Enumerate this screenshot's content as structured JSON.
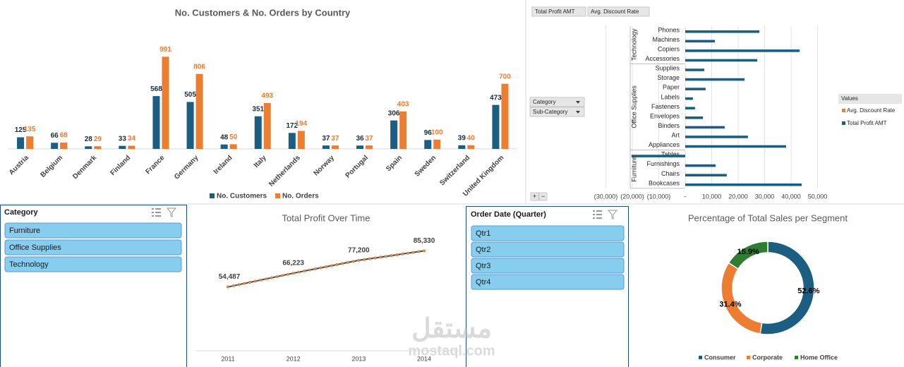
{
  "chart_data": [
    {
      "type": "bar",
      "title": "No. Customers & No. Orders by Country",
      "categories": [
        "Austria",
        "Belgium",
        "Denmark",
        "Finland",
        "France",
        "Germany",
        "Ireland",
        "Italy",
        "Netherlands",
        "Norway",
        "Portugal",
        "Spain",
        "Sweden",
        "Switzerland",
        "United Kingdom"
      ],
      "series": [
        {
          "name": "No. Customers",
          "color": "#1b5e82",
          "label_color": "#1a2a3a",
          "values": [
            125,
            66,
            28,
            33,
            568,
            505,
            48,
            351,
            172,
            37,
            36,
            306,
            96,
            39,
            473
          ]
        },
        {
          "name": "No. Orders",
          "color": "#ed7d31",
          "label_color": "#ed7d31",
          "values": [
            135,
            68,
            29,
            34,
            991,
            806,
            50,
            493,
            194,
            37,
            37,
            403,
            100,
            40,
            700
          ]
        }
      ],
      "ylim": [
        0,
        1100
      ],
      "legend": "bottom"
    },
    {
      "type": "hbar",
      "value_buttons": [
        "Total Profit AMT",
        "Avg. Discount Rate"
      ],
      "axis_buttons": [
        "Category",
        "Sub-Category"
      ],
      "expand_buttons": [
        "+",
        "−"
      ],
      "groups": [
        {
          "name": "Technology",
          "categories": [
            "Phones",
            "Machines",
            "Copiers",
            "Accessories"
          ]
        },
        {
          "name": "Office Supplies",
          "categories": [
            "Supplies",
            "Storage",
            "Paper",
            "Labels",
            "Fasteners",
            "Envelopes",
            "Binders",
            "Art",
            "Appliances"
          ]
        },
        {
          "name": "Furniture",
          "categories": [
            "Tables",
            "Furnishings",
            "Chairs",
            "Bookcases"
          ]
        }
      ],
      "legend_title": "Values",
      "series": [
        {
          "name": "Avg. Discount Rate",
          "color": "#ed7d31",
          "values": [
            0.1,
            0.1,
            0.1,
            0.1,
            0.1,
            0.1,
            0.1,
            0.1,
            0.1,
            0.1,
            0.1,
            0.1,
            0.1,
            0.1,
            0.1,
            0.1,
            0.1
          ]
        },
        {
          "name": "Total Profit AMT",
          "color": "#1b5e82",
          "values": [
            28000,
            11200,
            43200,
            27200,
            7200,
            22400,
            7700,
            2900,
            3700,
            6700,
            14900,
            23700,
            38100,
            -20300,
            11500,
            15700,
            44000
          ]
        }
      ],
      "xlim": [
        -30000,
        50000
      ],
      "xticks": [
        {
          "value": -30000,
          "label": "(30,000)"
        },
        {
          "value": -20000,
          "label": "(20,000)"
        },
        {
          "value": -10000,
          "label": "(10,000)"
        },
        {
          "value": 0,
          "label": "-"
        },
        {
          "value": 10000,
          "label": "10,000"
        },
        {
          "value": 20000,
          "label": "20,000"
        },
        {
          "value": 30000,
          "label": "30,000"
        },
        {
          "value": 40000,
          "label": "40,000"
        },
        {
          "value": 50000,
          "label": "50,000"
        }
      ],
      "grid": true,
      "legend": "right"
    },
    {
      "type": "line",
      "title": "Total Profit Over Time",
      "categories": [
        "2011",
        null,
        null,
        null,
        null,
        null,
        null,
        null,
        null,
        null,
        null,
        null,
        "2012",
        null,
        null,
        null,
        null,
        null,
        null,
        null,
        null,
        null,
        null,
        null,
        "2013",
        null,
        null,
        null,
        null,
        null,
        null,
        null,
        null,
        null,
        null,
        null,
        "2014"
      ],
      "values": [
        54487,
        55465,
        56443,
        57421,
        58399,
        59377,
        60355,
        61333,
        62311,
        63289,
        64267,
        65245,
        66223,
        67138,
        68053,
        68967,
        69882,
        70797,
        71712,
        72626,
        73541,
        74456,
        75371,
        76285,
        77200,
        77878,
        78555,
        79233,
        79910,
        80588,
        81265,
        81943,
        82620,
        83298,
        83975,
        84653,
        85330
      ],
      "value_labels": [
        "54,487",
        null,
        null,
        null,
        null,
        null,
        null,
        null,
        null,
        null,
        null,
        null,
        "66,223",
        null,
        null,
        null,
        null,
        null,
        null,
        null,
        null,
        null,
        null,
        null,
        "77,200",
        null,
        null,
        null,
        null,
        null,
        null,
        null,
        null,
        null,
        null,
        null,
        "85,330"
      ],
      "color": "#1f4e79",
      "marker_color": "#ed7d31",
      "ylim": [
        0,
        100000
      ]
    },
    {
      "type": "donut",
      "title": "Percentage of Total Sales per Segment",
      "categories": [
        "Consumer",
        "Corporate",
        "Home Office"
      ],
      "values": [
        52.6,
        31.4,
        15.9
      ],
      "value_labels": [
        "52.6%",
        "31.4%",
        "15.9%"
      ],
      "colors": [
        "#1b5e82",
        "#ed7d31",
        "#2e7d32"
      ],
      "legend": "bottom"
    }
  ],
  "slicers": [
    {
      "title": "Category",
      "items": [
        "Furniture",
        "Office Supplies",
        "Technology"
      ]
    },
    {
      "title": "Order Date (Quarter)",
      "items": [
        "Qtr1",
        "Qtr2",
        "Qtr3",
        "Qtr4"
      ]
    }
  ],
  "watermark": {
    "arabic": "مستقل",
    "latin": "mostaql.com"
  }
}
